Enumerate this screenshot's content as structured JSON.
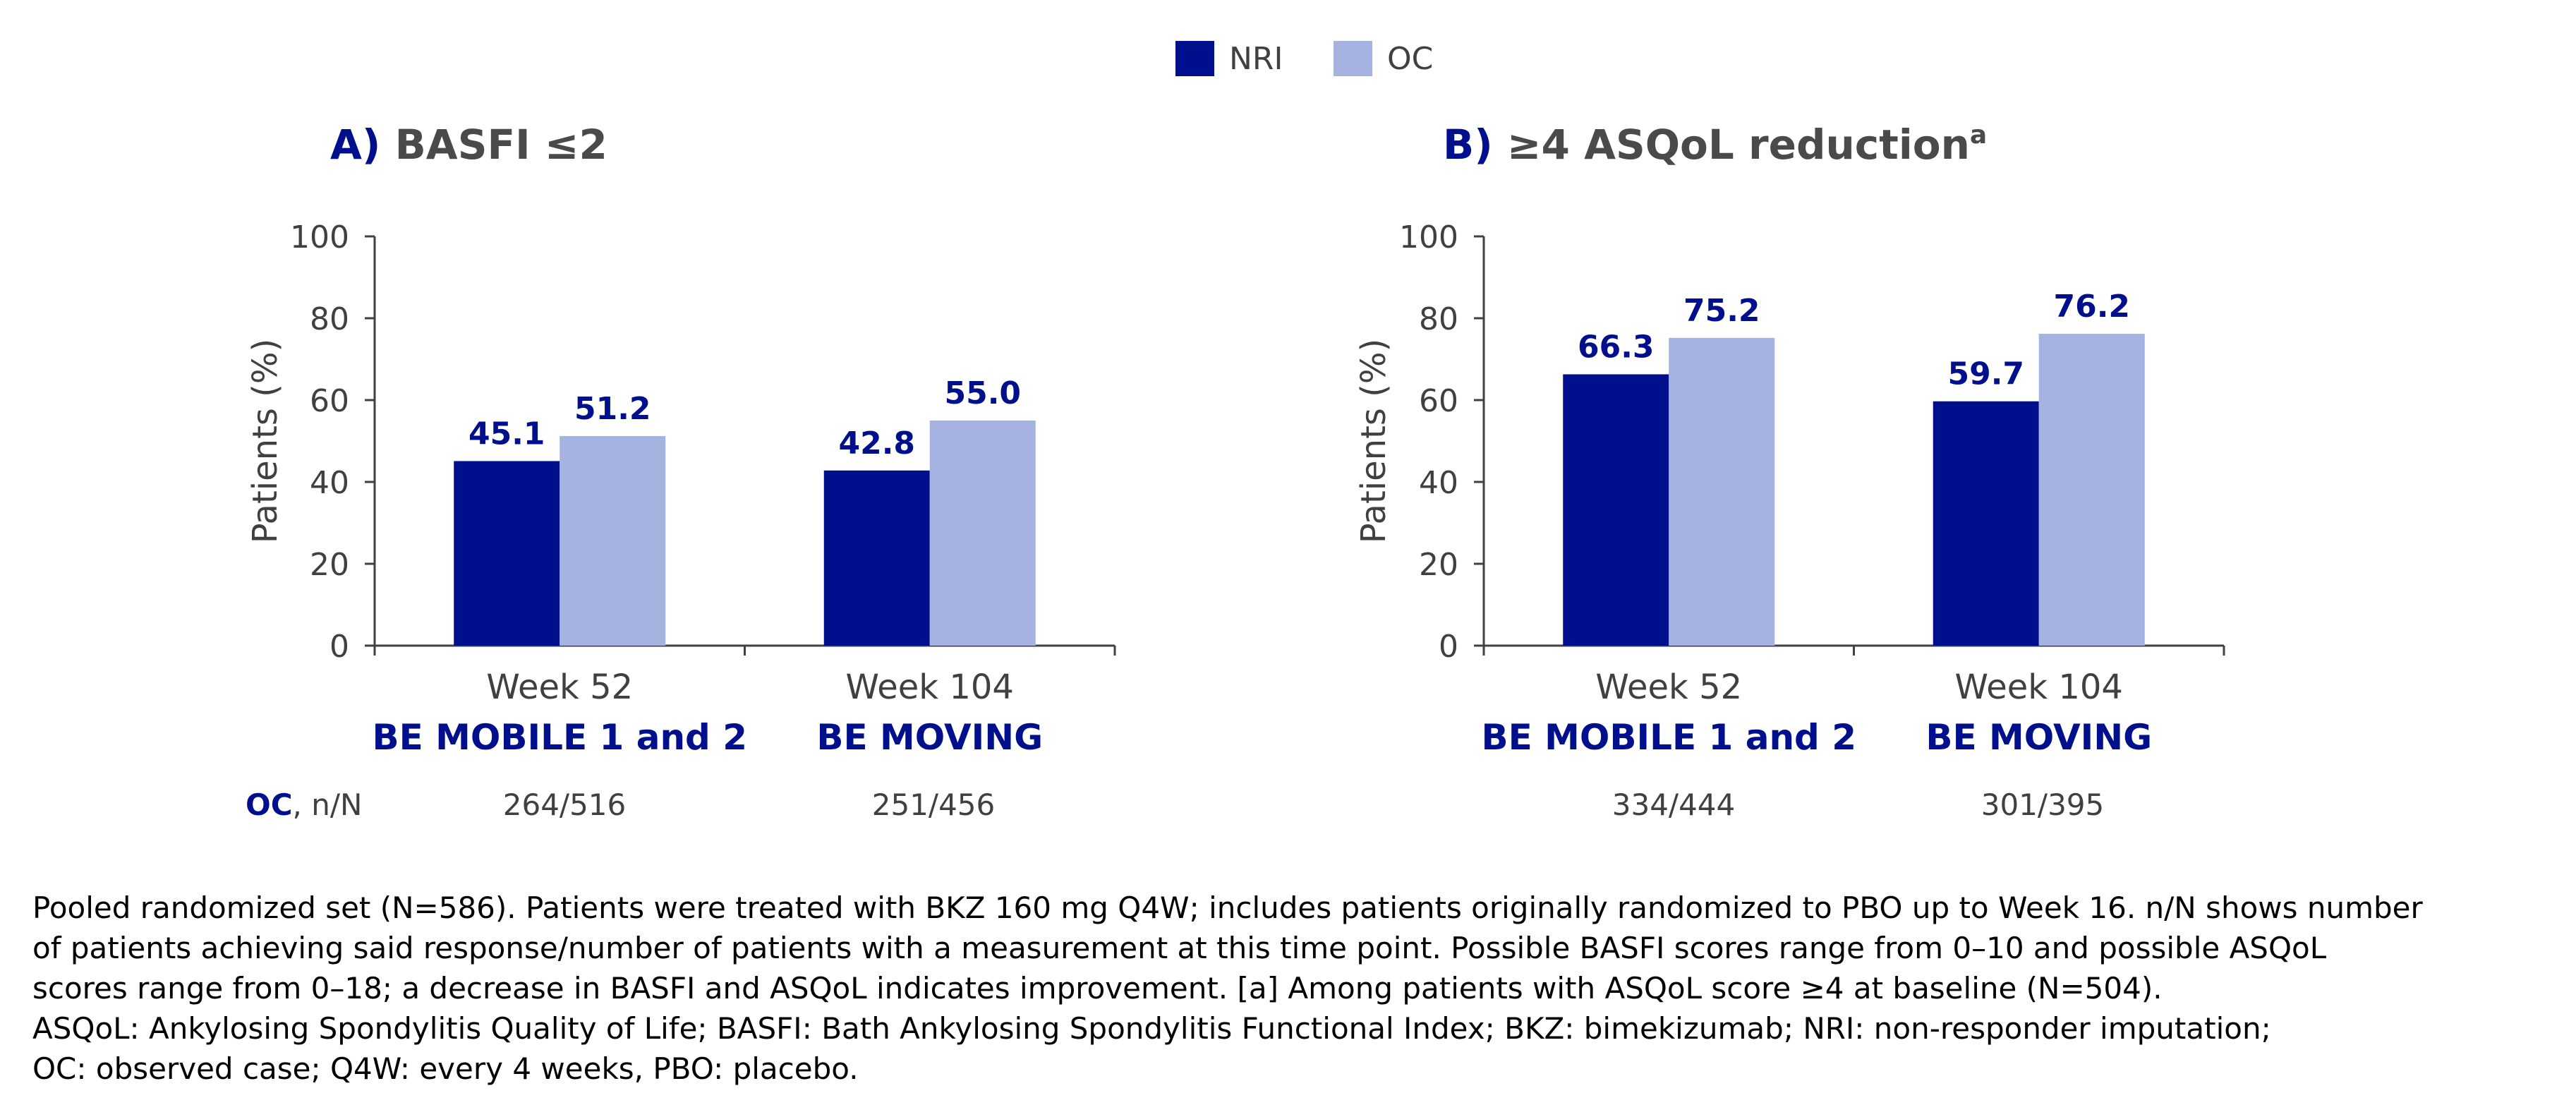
{
  "colors": {
    "nri": "#000f8c",
    "oc": "#a6b2e0",
    "title_prefix": "#000f8c",
    "title_text": "#4a4a4a",
    "axis": "#404040",
    "label": "#000f8c",
    "footnote": "#000000"
  },
  "legend": [
    {
      "key": "nri",
      "label": "NRI"
    },
    {
      "key": "oc",
      "label": "OC"
    }
  ],
  "counts_label": {
    "bold": "OC",
    "rest": ", n/N"
  },
  "footnote": {
    "lines": [
      "Pooled randomized set (N=586). Patients were treated with BKZ 160 mg Q4W; includes patients originally randomized to PBO up to Week 16. n/N shows number",
      "of patients achieving said response/number of patients with a measurement at this time point. Possible BASFI scores range from 0–10 and possible ASQoL",
      "scores range from 0–18; a decrease in BASFI and ASQoL indicates improvement. [a] Among patients with ASQoL score ≥4 at baseline (N=504).",
      "ASQoL: Ankylosing Spondylitis Quality of Life; BASFI: Bath Ankylosing Spondylitis Functional Index; BKZ: bimekizumab; NRI: non-responder imputation;",
      "OC: observed case; Q4W: every 4 weeks, PBO: placebo."
    ]
  },
  "chart_data": [
    {
      "type": "bar",
      "panel": "A)",
      "title": "BASFI ≤2",
      "title_superscript": "",
      "ylabel": "Patients (%)",
      "ylim": [
        0,
        100
      ],
      "yticks": [
        0,
        20,
        40,
        60,
        80,
        100
      ],
      "categories": [
        "Week 52",
        "Week 104"
      ],
      "category_groups": [
        "BE MOBILE 1 and 2",
        "BE MOVING"
      ],
      "series": [
        {
          "name": "NRI",
          "key": "nri",
          "values": [
            45.1,
            42.8
          ],
          "labels": [
            "45.1",
            "42.8"
          ]
        },
        {
          "name": "OC",
          "key": "oc",
          "values": [
            51.2,
            55.0
          ],
          "labels": [
            "51.2",
            "55.0"
          ]
        }
      ],
      "oc_counts": [
        "264/516",
        "251/456"
      ],
      "legend_position": "top-center"
    },
    {
      "type": "bar",
      "panel": "B)",
      "title": "≥4 ASQoL reduction",
      "title_superscript": "a",
      "ylabel": "Patients (%)",
      "ylim": [
        0,
        100
      ],
      "yticks": [
        0,
        20,
        40,
        60,
        80,
        100
      ],
      "categories": [
        "Week 52",
        "Week 104"
      ],
      "category_groups": [
        "BE MOBILE 1 and 2",
        "BE MOVING"
      ],
      "series": [
        {
          "name": "NRI",
          "key": "nri",
          "values": [
            66.3,
            59.7
          ],
          "labels": [
            "66.3",
            "59.7"
          ]
        },
        {
          "name": "OC",
          "key": "oc",
          "values": [
            75.2,
            76.2
          ],
          "labels": [
            "75.2",
            "76.2"
          ]
        }
      ],
      "oc_counts": [
        "334/444",
        "301/395"
      ],
      "legend_position": "top-center"
    }
  ]
}
